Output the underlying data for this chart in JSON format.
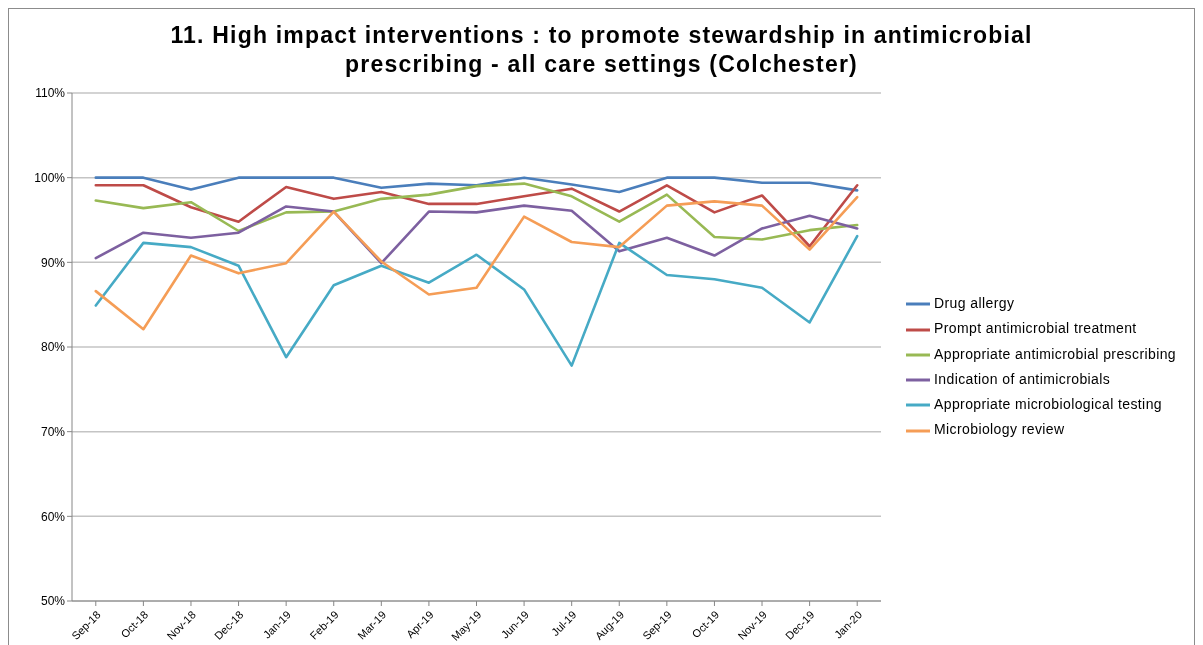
{
  "chart_data": {
    "type": "line",
    "title": "11. High impact interventions : to promote stewardship in antimicrobial prescribing - all care settings (Colchester)",
    "categories": [
      "Sep-18",
      "Oct-18",
      "Nov-18",
      "Dec-18",
      "Jan-19",
      "Feb-19",
      "Mar-19",
      "Apr-19",
      "May-19",
      "Jun-19",
      "Jul-19",
      "Aug-19",
      "Sep-19",
      "Oct-19",
      "Nov-19",
      "Dec-19",
      "Jan-20"
    ],
    "series": [
      {
        "name": "Drug allergy",
        "color": "#4a7ebb",
        "values": [
          100,
          100,
          98.6,
          100,
          100,
          100,
          98.8,
          99.3,
          99.1,
          100,
          99.2,
          98.3,
          100,
          100,
          99.4,
          99.4,
          98.5
        ]
      },
      {
        "name": "Prompt antimicrobial treatment",
        "color": "#be4b48",
        "values": [
          99.1,
          99.1,
          96.5,
          94.8,
          98.9,
          97.5,
          98.3,
          96.9,
          96.9,
          97.8,
          98.7,
          96.0,
          99.1,
          95.9,
          97.9,
          91.9,
          99.1
        ]
      },
      {
        "name": "Appropriate antimicrobial prescribing",
        "color": "#98b954",
        "values": [
          97.3,
          96.4,
          97.1,
          93.7,
          95.9,
          96.0,
          97.5,
          98.0,
          99.0,
          99.3,
          97.8,
          94.8,
          98.0,
          93.0,
          92.7,
          93.8,
          94.4
        ]
      },
      {
        "name": "Indication of antimicrobials",
        "color": "#7d60a0",
        "values": [
          90.5,
          93.5,
          92.9,
          93.5,
          96.6,
          96.0,
          89.9,
          96.0,
          95.9,
          96.7,
          96.1,
          91.3,
          92.9,
          90.8,
          94.0,
          95.5,
          94.0
        ]
      },
      {
        "name": "Appropriate microbiological testing",
        "color": "#46aac5",
        "values": [
          84.9,
          92.3,
          91.8,
          89.6,
          78.8,
          87.3,
          89.6,
          87.6,
          90.9,
          86.8,
          77.8,
          92.3,
          88.5,
          88.0,
          87.0,
          82.9,
          93.1
        ]
      },
      {
        "name": "Microbiology review",
        "color": "#f59d56",
        "values": [
          86.6,
          82.1,
          90.8,
          88.7,
          89.9,
          96.0,
          90.1,
          86.2,
          87.0,
          95.4,
          92.4,
          91.8,
          96.7,
          97.2,
          96.7,
          91.5,
          97.7
        ]
      }
    ],
    "ylim": [
      50,
      110
    ],
    "yticks": [
      {
        "value": 50,
        "label": "50%"
      },
      {
        "value": 60,
        "label": "60%"
      },
      {
        "value": 70,
        "label": "70%"
      },
      {
        "value": 80,
        "label": "80%"
      },
      {
        "value": 90,
        "label": "90%"
      },
      {
        "value": 100,
        "label": "100%"
      },
      {
        "value": 110,
        "label": "110%"
      }
    ],
    "grid": "y",
    "legend": "right",
    "marker": "none",
    "line_style": "solid"
  }
}
